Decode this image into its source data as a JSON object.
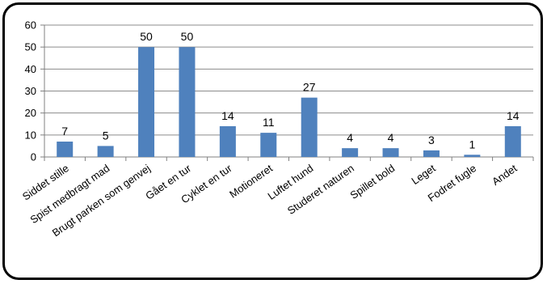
{
  "chart_data": {
    "type": "bar",
    "title": "",
    "xlabel": "",
    "ylabel": "",
    "ylim": [
      0,
      60
    ],
    "yticks": [
      0,
      10,
      20,
      30,
      40,
      50,
      60
    ],
    "grid": true,
    "legend": "none",
    "bar_color": "#4F81BD",
    "categories": [
      "Siddet stille",
      "Spist medbragt mad",
      "Brugt parken som genvej",
      "Gået en tur",
      "Cyklet en tur",
      "Motioneret",
      "Luftet hund",
      "Studeret naturen",
      "Spillet bold",
      "Leget",
      "Fodret fugle",
      "Andet"
    ],
    "values": [
      7,
      5,
      50,
      50,
      14,
      11,
      27,
      4,
      4,
      3,
      1,
      14
    ]
  }
}
